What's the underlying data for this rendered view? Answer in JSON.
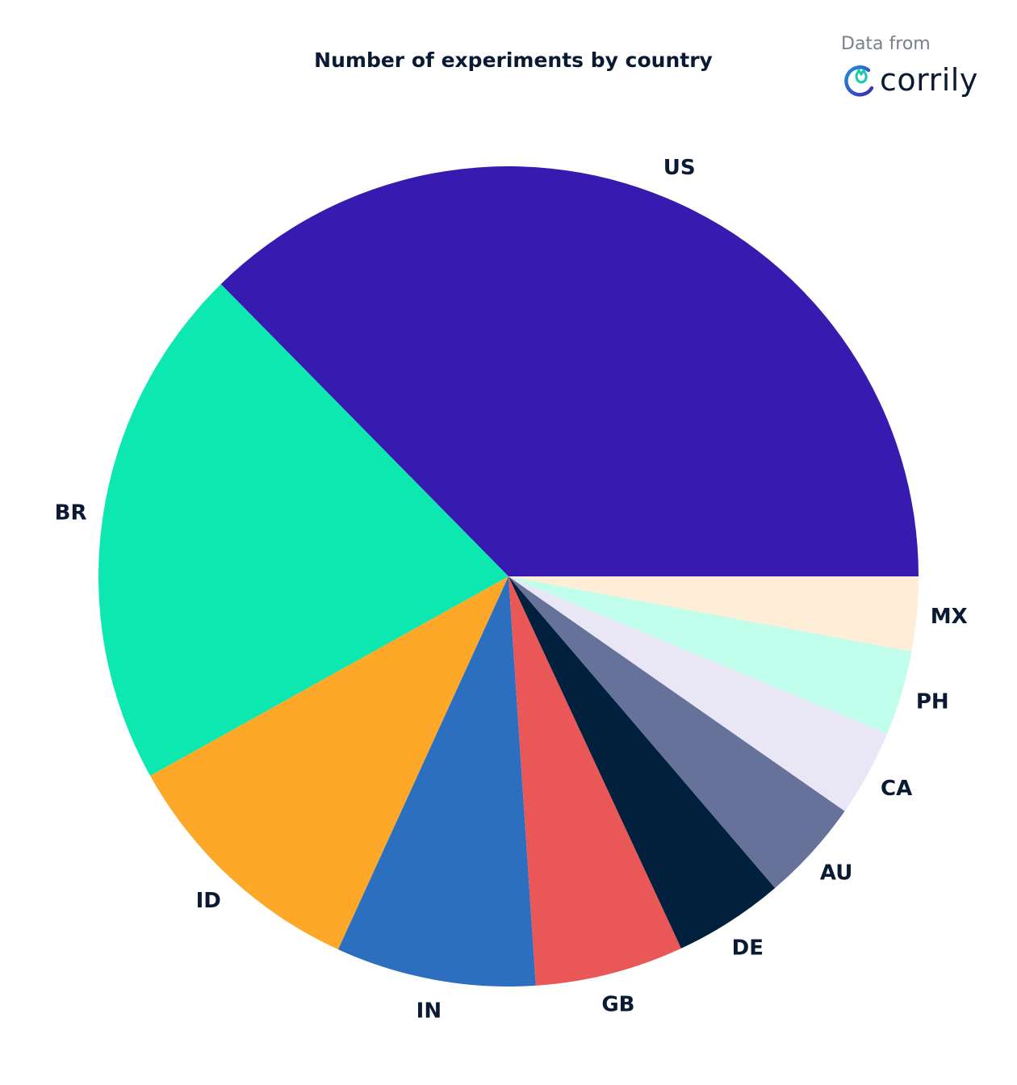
{
  "chart_data": {
    "type": "pie",
    "title": "Number of experiments by country",
    "slices": [
      {
        "label": "US",
        "value": 37.0,
        "color": "#371bb0"
      },
      {
        "label": "BR",
        "value": 20.5,
        "color": "#0de8b0"
      },
      {
        "label": "ID",
        "value": 10.0,
        "color": "#fda829"
      },
      {
        "label": "IN",
        "value": 7.8,
        "color": "#2d6fbf"
      },
      {
        "label": "GB",
        "value": 5.8,
        "color": "#ea5757"
      },
      {
        "label": "DE",
        "value": 4.3,
        "color": "#01203e"
      },
      {
        "label": "AU",
        "value": 4.0,
        "color": "#67729b"
      },
      {
        "label": "CA",
        "value": 3.4,
        "color": "#e9e7f5"
      },
      {
        "label": "PH",
        "value": 3.3,
        "color": "#c0fdea"
      },
      {
        "label": "MX",
        "value": 2.9,
        "color": "#ffeed7"
      }
    ],
    "start": "3 o'clock",
    "direction": "counter-clockwise"
  },
  "attribution": {
    "label": "Data from",
    "brand": "corrily",
    "logo_icon": "corrily-cat-logo-icon",
    "logo_colors": [
      "#1f8fd6",
      "#3d2bb5",
      "#17c9b0"
    ]
  }
}
